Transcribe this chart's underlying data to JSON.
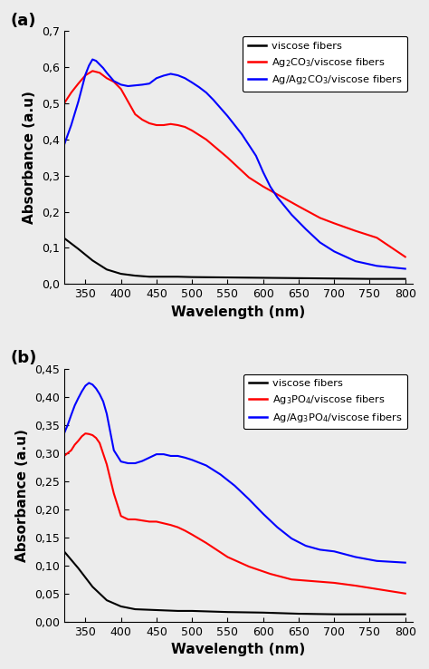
{
  "panel_a": {
    "xlabel": "Wavelength (nm)",
    "ylabel": "Absorbance (a.u)",
    "ylim": [
      0.0,
      0.7
    ],
    "yticks": [
      0.0,
      0.1,
      0.2,
      0.3,
      0.4,
      0.5,
      0.6,
      0.7
    ],
    "ytick_labels": [
      "0,0",
      "0,1",
      "0,2",
      "0,3",
      "0,4",
      "0,5",
      "0,6",
      "0,7"
    ],
    "xlim": [
      320,
      810
    ],
    "xticks": [
      350,
      400,
      450,
      500,
      550,
      600,
      650,
      700,
      750,
      800
    ],
    "label": "(a)",
    "legend": [
      "viscose fibers",
      "Ag$_2$CO$_3$/viscose fibers",
      "Ag/Ag$_2$CO$_3$/viscose fibers"
    ],
    "colors": [
      "black",
      "red",
      "blue"
    ],
    "black_x": [
      320,
      340,
      360,
      380,
      400,
      420,
      440,
      460,
      480,
      500,
      550,
      600,
      650,
      700,
      750,
      800
    ],
    "black_y": [
      0.127,
      0.097,
      0.065,
      0.04,
      0.028,
      0.023,
      0.02,
      0.02,
      0.02,
      0.019,
      0.018,
      0.017,
      0.016,
      0.015,
      0.014,
      0.014
    ],
    "red_x": [
      320,
      330,
      340,
      350,
      360,
      370,
      380,
      390,
      400,
      410,
      420,
      430,
      440,
      450,
      460,
      470,
      480,
      490,
      500,
      520,
      550,
      580,
      600,
      620,
      650,
      680,
      700,
      730,
      760,
      800
    ],
    "red_y": [
      0.5,
      0.53,
      0.555,
      0.578,
      0.59,
      0.585,
      0.57,
      0.56,
      0.54,
      0.505,
      0.47,
      0.455,
      0.445,
      0.44,
      0.44,
      0.443,
      0.44,
      0.435,
      0.425,
      0.4,
      0.35,
      0.295,
      0.27,
      0.248,
      0.215,
      0.183,
      0.168,
      0.147,
      0.128,
      0.075
    ],
    "blue_x": [
      320,
      330,
      340,
      350,
      355,
      360,
      365,
      370,
      375,
      380,
      390,
      400,
      410,
      420,
      430,
      440,
      450,
      460,
      470,
      480,
      490,
      500,
      510,
      520,
      530,
      550,
      570,
      590,
      600,
      610,
      620,
      640,
      660,
      680,
      700,
      730,
      760,
      800
    ],
    "blue_y": [
      0.385,
      0.44,
      0.505,
      0.58,
      0.605,
      0.622,
      0.618,
      0.608,
      0.598,
      0.585,
      0.562,
      0.552,
      0.548,
      0.55,
      0.552,
      0.555,
      0.57,
      0.577,
      0.582,
      0.578,
      0.57,
      0.558,
      0.545,
      0.53,
      0.51,
      0.465,
      0.415,
      0.355,
      0.31,
      0.27,
      0.24,
      0.192,
      0.152,
      0.115,
      0.09,
      0.063,
      0.05,
      0.042
    ]
  },
  "panel_b": {
    "xlabel": "Wavelength (nm)",
    "ylabel": "Absorbance (a.u)",
    "ylim": [
      0.0,
      0.45
    ],
    "yticks": [
      0.0,
      0.05,
      0.1,
      0.15,
      0.2,
      0.25,
      0.3,
      0.35,
      0.4,
      0.45
    ],
    "ytick_labels": [
      "0,00",
      "0,05",
      "0,10",
      "0,15",
      "0,20",
      "0,25",
      "0,30",
      "0,35",
      "0,40",
      "0,45"
    ],
    "xlim": [
      320,
      810
    ],
    "xticks": [
      350,
      400,
      450,
      500,
      550,
      600,
      650,
      700,
      750,
      800
    ],
    "label": "(b)",
    "legend": [
      "viscose fibers",
      "Ag$_3$PO$_4$/viscose fibers",
      "Ag/Ag$_3$PO$_4$/viscose fibers"
    ],
    "colors": [
      "black",
      "red",
      "blue"
    ],
    "black_x": [
      320,
      340,
      360,
      380,
      400,
      420,
      440,
      460,
      480,
      500,
      550,
      600,
      650,
      700,
      750,
      800
    ],
    "black_y": [
      0.125,
      0.095,
      0.062,
      0.038,
      0.027,
      0.022,
      0.021,
      0.02,
      0.019,
      0.019,
      0.017,
      0.016,
      0.014,
      0.013,
      0.013,
      0.013
    ],
    "red_x": [
      320,
      325,
      330,
      335,
      340,
      345,
      350,
      355,
      360,
      365,
      370,
      380,
      390,
      400,
      410,
      420,
      430,
      440,
      450,
      460,
      470,
      480,
      490,
      500,
      520,
      550,
      580,
      610,
      640,
      670,
      700,
      730,
      760,
      800
    ],
    "red_y": [
      0.295,
      0.3,
      0.305,
      0.315,
      0.322,
      0.33,
      0.335,
      0.334,
      0.332,
      0.327,
      0.318,
      0.28,
      0.228,
      0.188,
      0.182,
      0.182,
      0.18,
      0.178,
      0.178,
      0.175,
      0.172,
      0.168,
      0.162,
      0.155,
      0.14,
      0.115,
      0.098,
      0.085,
      0.075,
      0.072,
      0.069,
      0.064,
      0.058,
      0.05
    ],
    "blue_x": [
      320,
      325,
      330,
      335,
      340,
      345,
      350,
      355,
      360,
      365,
      370,
      375,
      380,
      390,
      400,
      410,
      420,
      430,
      440,
      450,
      460,
      470,
      480,
      490,
      500,
      520,
      540,
      560,
      580,
      600,
      620,
      640,
      660,
      680,
      700,
      730,
      760,
      800
    ],
    "blue_y": [
      0.335,
      0.35,
      0.368,
      0.385,
      0.398,
      0.41,
      0.42,
      0.425,
      0.422,
      0.415,
      0.405,
      0.392,
      0.37,
      0.305,
      0.285,
      0.282,
      0.282,
      0.286,
      0.292,
      0.298,
      0.298,
      0.295,
      0.295,
      0.292,
      0.288,
      0.278,
      0.262,
      0.242,
      0.218,
      0.192,
      0.168,
      0.148,
      0.135,
      0.128,
      0.125,
      0.115,
      0.108,
      0.105
    ]
  },
  "bg_color": "#ececec",
  "linewidth": 1.5
}
